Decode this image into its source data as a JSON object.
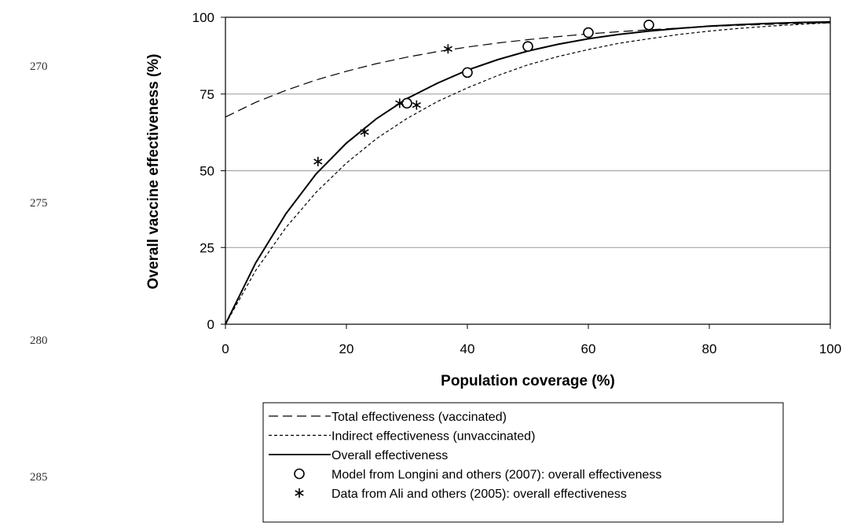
{
  "line_numbers": [
    "270",
    "275",
    "280",
    "285"
  ],
  "chart_data": {
    "type": "line",
    "xlabel": "Population coverage (%)",
    "ylabel": "Overall vaccine effectiveness (%)",
    "xlim": [
      0,
      100
    ],
    "ylim": [
      0,
      100
    ],
    "x_ticks": [
      "0",
      "20",
      "40",
      "60",
      "80",
      "100"
    ],
    "y_ticks": [
      "0",
      "25",
      "50",
      "75",
      "100"
    ],
    "grid": "horizontal",
    "legend_position": "bottom",
    "series": [
      {
        "name": "Total effectiveness (vaccinated)",
        "style": "dashed",
        "x": [
          0,
          5,
          10,
          15,
          20,
          25,
          30,
          35,
          40,
          45,
          50,
          55,
          60,
          65,
          70,
          75,
          80,
          85,
          90,
          95,
          100
        ],
        "y": [
          67.5,
          72.3,
          76.2,
          79.6,
          82.4,
          84.9,
          87.0,
          88.8,
          90.3,
          91.6,
          92.7,
          93.7,
          94.6,
          95.3,
          95.9,
          96.5,
          97.0,
          97.4,
          97.7,
          98.0,
          98.2
        ]
      },
      {
        "name": "Indirect effectiveness (unvaccinated)",
        "style": "dotted",
        "x": [
          0,
          5,
          10,
          15,
          20,
          25,
          30,
          35,
          40,
          45,
          50,
          55,
          60,
          65,
          70,
          75,
          80,
          85,
          90,
          95,
          100
        ],
        "y": [
          0,
          17.5,
          31.5,
          43.0,
          52.5,
          60.5,
          67.0,
          72.5,
          77.0,
          81.0,
          84.5,
          87.2,
          89.5,
          91.5,
          93.0,
          94.4,
          95.5,
          96.4,
          97.1,
          97.7,
          98.2
        ]
      },
      {
        "name": "Overall effectiveness",
        "style": "solid",
        "x": [
          0,
          5,
          10,
          15,
          20,
          25,
          30,
          35,
          40,
          45,
          50,
          55,
          60,
          65,
          70,
          75,
          80,
          85,
          90,
          95,
          100
        ],
        "y": [
          0,
          20.0,
          36.0,
          49.0,
          59.0,
          67.0,
          73.5,
          78.5,
          82.8,
          86.2,
          89.0,
          91.2,
          93.0,
          94.4,
          95.5,
          96.4,
          97.1,
          97.6,
          98.0,
          98.3,
          98.5
        ]
      }
    ],
    "points": [
      {
        "name": "Model from Longini and others (2007): overall effectiveness",
        "marker": "circle",
        "x": [
          30,
          40,
          50,
          60,
          70
        ],
        "y": [
          72.0,
          82.0,
          90.5,
          95.0,
          97.5
        ]
      },
      {
        "name": "Data from Ali and others (2005): overall effectiveness",
        "marker": "asterisk",
        "x": [
          15.3,
          23,
          28.8,
          31.6,
          36.8
        ],
        "y": [
          53,
          62.6,
          72.0,
          71.4,
          89.7
        ]
      }
    ]
  }
}
